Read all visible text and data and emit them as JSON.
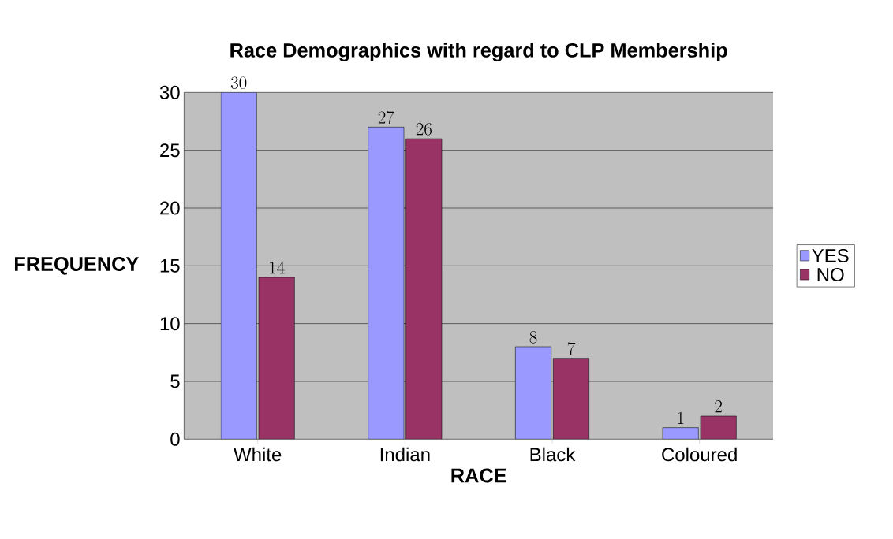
{
  "chart_data": {
    "type": "bar",
    "title": "Race Demographics with regard to CLP Membership",
    "xlabel": "RACE",
    "ylabel": "FREQUENCY",
    "categories": [
      "White",
      "Indian",
      "Black",
      "Coloured"
    ],
    "series": [
      {
        "name": "YES",
        "color": "#9999ff",
        "values": [
          30,
          27,
          8,
          1
        ]
      },
      {
        "name": "NO",
        "color": "#993366",
        "values": [
          14,
          26,
          7,
          2
        ]
      }
    ],
    "ylim": [
      0,
      30
    ],
    "yticks": [
      0,
      5,
      10,
      15,
      20,
      25,
      30
    ],
    "grid": "y",
    "legend": "right",
    "data_labels": true
  }
}
